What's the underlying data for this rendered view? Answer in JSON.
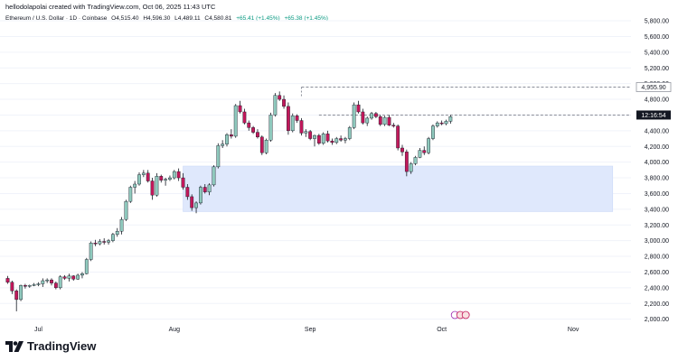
{
  "header": {
    "attribution": "hellodolapolai created with TradingView.com, Oct 06, 2025 11:43 UTC"
  },
  "symbol": {
    "name": "Ethereum / U.S. Dollar · 1D · Coinbase",
    "open": "O4,515.40",
    "high": "H4,596.30",
    "low": "L4,489.11",
    "close": "C4,580.81",
    "change": "+65.41 (+1.45%)",
    "change2": "+65.38 (+1.45%)"
  },
  "colors": {
    "up": "#089981",
    "up_candle": "#8fc9bd",
    "down": "#c2185b",
    "zone": "#dfe8fc",
    "zone_border": "#c7d5f7",
    "grid": "#f0f3fa"
  },
  "labels": {
    "level_high": "4,955.90",
    "countdown": "12:16:54"
  },
  "brand": {
    "name": "TradingView"
  },
  "icons": {
    "event_markers": [
      "flag-icon",
      "us-flag-icon",
      "us-flag-icon"
    ]
  },
  "chart_data": {
    "type": "candlestick",
    "y_axis": {
      "min": 1950,
      "max": 5950,
      "ticks": [
        "5,800.00",
        "5,600.00",
        "5,400.00",
        "5,200.00",
        "5,000.00",
        "4,800.00",
        "4,600.00",
        "4,400.00",
        "4,200.00",
        "4,000.00",
        "3,800.00",
        "3,600.00",
        "3,400.00",
        "3,200.00",
        "3,000.00",
        "2,800.00",
        "2,600.00",
        "2,400.00",
        "2,200.00",
        "2,000.00"
      ],
      "tick_values": [
        5800,
        5600,
        5400,
        5200,
        5000,
        4800,
        4600,
        4400,
        4200,
        4000,
        3800,
        3600,
        3400,
        3200,
        3000,
        2800,
        2600,
        2400,
        2200,
        2000
      ]
    },
    "x_axis": {
      "labels": [
        "Jul",
        "Aug",
        "Sep",
        "Oct",
        "Nov"
      ],
      "label_index": [
        7,
        38,
        69,
        99,
        129
      ]
    },
    "levels": [
      {
        "name": "4,955.90",
        "value": 4955.9,
        "start_index": 67
      },
      {
        "name": "12:16:54",
        "value": 4600,
        "start_index": 71
      }
    ],
    "zone": {
      "start_index": 40,
      "end_index": 138,
      "top": 3950,
      "bottom": 3370
    },
    "candles": [
      [
        2520,
        2550,
        2450,
        2470
      ],
      [
        2470,
        2490,
        2320,
        2360
      ],
      [
        2360,
        2380,
        2100,
        2250
      ],
      [
        2250,
        2440,
        2230,
        2430
      ],
      [
        2430,
        2450,
        2390,
        2420
      ],
      [
        2420,
        2440,
        2400,
        2430
      ],
      [
        2430,
        2460,
        2420,
        2440
      ],
      [
        2440,
        2470,
        2420,
        2450
      ],
      [
        2450,
        2520,
        2410,
        2490
      ],
      [
        2490,
        2520,
        2460,
        2500
      ],
      [
        2500,
        2520,
        2430,
        2460
      ],
      [
        2460,
        2480,
        2380,
        2400
      ],
      [
        2400,
        2560,
        2380,
        2540
      ],
      [
        2540,
        2560,
        2500,
        2520
      ],
      [
        2520,
        2580,
        2480,
        2550
      ],
      [
        2550,
        2560,
        2490,
        2510
      ],
      [
        2510,
        2580,
        2500,
        2560
      ],
      [
        2560,
        2600,
        2520,
        2580
      ],
      [
        2580,
        2780,
        2570,
        2760
      ],
      [
        2760,
        2990,
        2740,
        2970
      ],
      [
        2970,
        3010,
        2930,
        2960
      ],
      [
        2960,
        3020,
        2940,
        2990
      ],
      [
        2990,
        3030,
        2950,
        2980
      ],
      [
        2980,
        3020,
        2950,
        3000
      ],
      [
        3000,
        3100,
        2980,
        3080
      ],
      [
        3080,
        3160,
        3050,
        3120
      ],
      [
        3120,
        3300,
        3080,
        3270
      ],
      [
        3270,
        3520,
        3250,
        3500
      ],
      [
        3500,
        3700,
        3480,
        3680
      ],
      [
        3680,
        3760,
        3600,
        3720
      ],
      [
        3720,
        3870,
        3700,
        3840
      ],
      [
        3840,
        3900,
        3810,
        3860
      ],
      [
        3860,
        3900,
        3740,
        3760
      ],
      [
        3760,
        3800,
        3520,
        3580
      ],
      [
        3580,
        3860,
        3560,
        3820
      ],
      [
        3820,
        3840,
        3740,
        3770
      ],
      [
        3770,
        3800,
        3700,
        3780
      ],
      [
        3780,
        3830,
        3760,
        3800
      ],
      [
        3800,
        3900,
        3780,
        3880
      ],
      [
        3880,
        3920,
        3760,
        3800
      ],
      [
        3800,
        3860,
        3650,
        3680
      ],
      [
        3680,
        3720,
        3520,
        3560
      ],
      [
        3560,
        3590,
        3380,
        3420
      ],
      [
        3420,
        3500,
        3350,
        3480
      ],
      [
        3480,
        3700,
        3460,
        3680
      ],
      [
        3680,
        3720,
        3600,
        3620
      ],
      [
        3620,
        3730,
        3580,
        3710
      ],
      [
        3710,
        3960,
        3690,
        3940
      ],
      [
        3940,
        4240,
        3920,
        4210
      ],
      [
        4210,
        4280,
        4180,
        4230
      ],
      [
        4230,
        4370,
        4200,
        4350
      ],
      [
        4350,
        4420,
        4300,
        4330
      ],
      [
        4330,
        4740,
        4310,
        4720
      ],
      [
        4720,
        4780,
        4620,
        4640
      ],
      [
        4640,
        4680,
        4480,
        4500
      ],
      [
        4500,
        4530,
        4400,
        4440
      ],
      [
        4440,
        4460,
        4360,
        4380
      ],
      [
        4380,
        4420,
        4300,
        4320
      ],
      [
        4320,
        4340,
        4090,
        4120
      ],
      [
        4120,
        4300,
        4100,
        4280
      ],
      [
        4280,
        4630,
        4260,
        4600
      ],
      [
        4600,
        4880,
        4580,
        4850
      ],
      [
        4850,
        4900,
        4780,
        4800
      ],
      [
        4800,
        4850,
        4680,
        4710
      ],
      [
        4710,
        4760,
        4350,
        4400
      ],
      [
        4400,
        4620,
        4380,
        4590
      ],
      [
        4590,
        4610,
        4500,
        4530
      ],
      [
        4530,
        4560,
        4340,
        4370
      ],
      [
        4370,
        4420,
        4320,
        4390
      ],
      [
        4390,
        4410,
        4280,
        4300
      ],
      [
        4300,
        4350,
        4200,
        4340
      ],
      [
        4340,
        4360,
        4220,
        4240
      ],
      [
        4240,
        4380,
        4220,
        4360
      ],
      [
        4360,
        4400,
        4250,
        4270
      ],
      [
        4270,
        4300,
        4220,
        4250
      ],
      [
        4250,
        4320,
        4230,
        4300
      ],
      [
        4300,
        4340,
        4260,
        4280
      ],
      [
        4280,
        4320,
        4240,
        4300
      ],
      [
        4300,
        4460,
        4280,
        4440
      ],
      [
        4440,
        4760,
        4420,
        4730
      ],
      [
        4730,
        4780,
        4620,
        4640
      ],
      [
        4640,
        4680,
        4480,
        4500
      ],
      [
        4500,
        4580,
        4460,
        4560
      ],
      [
        4560,
        4640,
        4540,
        4620
      ],
      [
        4620,
        4640,
        4560,
        4580
      ],
      [
        4580,
        4600,
        4460,
        4480
      ],
      [
        4480,
        4590,
        4460,
        4570
      ],
      [
        4570,
        4600,
        4460,
        4470
      ],
      [
        4470,
        4500,
        4440,
        4460
      ],
      [
        4460,
        4480,
        4150,
        4180
      ],
      [
        4180,
        4220,
        4080,
        4130
      ],
      [
        4130,
        4160,
        3820,
        3880
      ],
      [
        3880,
        4000,
        3850,
        3980
      ],
      [
        3980,
        4080,
        3960,
        4060
      ],
      [
        4060,
        4180,
        4050,
        4150
      ],
      [
        4150,
        4200,
        4090,
        4120
      ],
      [
        4120,
        4320,
        4100,
        4300
      ],
      [
        4300,
        4480,
        4280,
        4460
      ],
      [
        4460,
        4520,
        4440,
        4500
      ],
      [
        4500,
        4530,
        4470,
        4490
      ],
      [
        4490,
        4540,
        4470,
        4520
      ],
      [
        4520,
        4600,
        4490,
        4580
      ]
    ]
  }
}
